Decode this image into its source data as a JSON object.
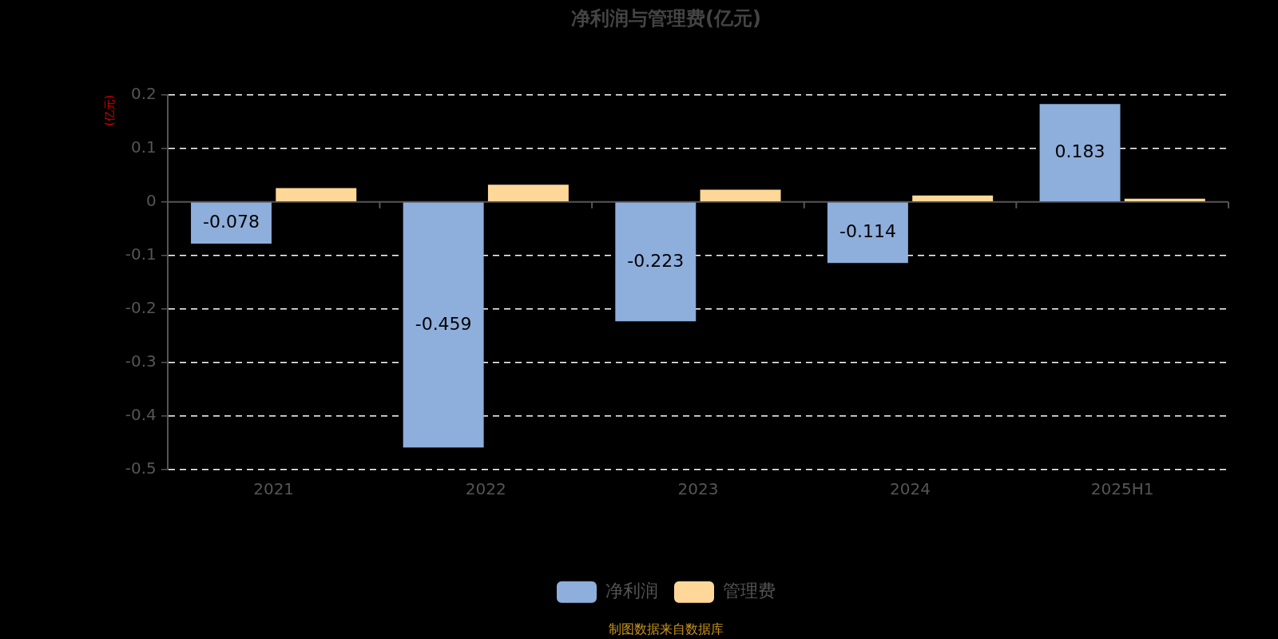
{
  "chart_data": {
    "type": "bar",
    "title": "净利润与管理费(亿元)",
    "ylabel": "(亿元)",
    "categories": [
      "2021",
      "2022",
      "2023",
      "2024",
      "2025H1"
    ],
    "series": [
      {
        "name": "净利润",
        "color": "#8eaedb",
        "values": [
          -0.078,
          -0.459,
          -0.223,
          -0.114,
          0.183
        ],
        "value_labels": [
          "-0.078",
          "-0.459",
          "-0.223",
          "-0.114",
          "0.183"
        ]
      },
      {
        "name": "管理费",
        "color": "#ffd899",
        "values": [
          0.026,
          0.032,
          0.023,
          0.012,
          0.006
        ]
      }
    ],
    "ylim": [
      -0.5,
      0.2
    ],
    "yticks": [
      0.2,
      0.1,
      0,
      -0.1,
      -0.2,
      -0.3,
      -0.4,
      -0.5
    ],
    "grid": "y",
    "legend": "bottom",
    "annotations": [
      "制图数据来自数据库"
    ]
  }
}
